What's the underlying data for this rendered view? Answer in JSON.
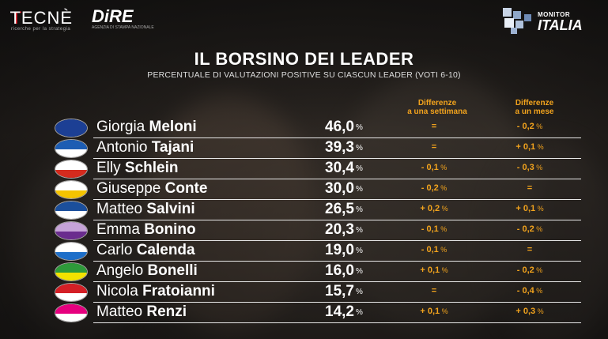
{
  "brands": {
    "tecne": "TECNÈ",
    "tecne_tagline": "ricerche per la strategia",
    "dire": "DiRE",
    "dire_tagline": "AGENZIA DI STAMPA NAZIONALE",
    "monitor_top": "MONITOR",
    "monitor_bottom": "ITALIA"
  },
  "colors": {
    "accent": "#f2a31d",
    "text": "#ffffff",
    "divider": "#e8e8e8"
  },
  "chart_data": {
    "type": "table",
    "title": "IL BORSINO DEI LEADER",
    "subtitle": "PERCENTUALE DI VALUTAZIONI POSITIVE SU CIASCUN LEADER (VOTI 6-10)",
    "columns": {
      "week_head_1": "Differenze",
      "week_head_2": "a una settimana",
      "month_head_1": "Differenze",
      "month_head_2": "a un mese"
    },
    "pct_unit": "%",
    "rows": [
      {
        "first": "Giorgia",
        "last": "Meloni",
        "value": "46,0",
        "week": "=",
        "month": "- 0,2",
        "party_colors": [
          "#1c3f94",
          "#1c3f94"
        ]
      },
      {
        "first": "Antonio",
        "last": "Tajani",
        "value": "39,3",
        "week": "=",
        "month": "+ 0,1",
        "party_colors": [
          "#1d5db3",
          "#ffffff"
        ]
      },
      {
        "first": "Elly",
        "last": "Schlein",
        "value": "30,4",
        "week": "- 0,1",
        "month": "- 0,3",
        "party_colors": [
          "#ffffff",
          "#d52b1e"
        ]
      },
      {
        "first": "Giuseppe",
        "last": "Conte",
        "value": "30,0",
        "week": "- 0,2",
        "month": "=",
        "party_colors": [
          "#ffffff",
          "#f5c400"
        ]
      },
      {
        "first": "Matteo",
        "last": "Salvini",
        "value": "26,5",
        "week": "+ 0,2",
        "month": "+ 0,1",
        "party_colors": [
          "#1b4f9c",
          "#ffffff"
        ]
      },
      {
        "first": "Emma",
        "last": "Bonino",
        "value": "20,3",
        "week": "- 0,1",
        "month": "- 0,2",
        "party_colors": [
          "#c6a3d8",
          "#6a2c8e"
        ]
      },
      {
        "first": "Carlo",
        "last": "Calenda",
        "value": "19,0",
        "week": "- 0,1",
        "month": "=",
        "party_colors": [
          "#ffffff",
          "#1e6fc9"
        ]
      },
      {
        "first": "Angelo",
        "last": "Bonelli",
        "value": "16,0",
        "week": "+ 0,1",
        "month": "- 0,2",
        "party_colors": [
          "#2e9a3a",
          "#f2e200"
        ]
      },
      {
        "first": "Nicola",
        "last": "Fratoianni",
        "value": "15,7",
        "week": "=",
        "month": "- 0,4",
        "party_colors": [
          "#d41f26",
          "#ffffff"
        ]
      },
      {
        "first": "Matteo",
        "last": "Renzi",
        "value": "14,2",
        "week": "+ 0,1",
        "month": "+ 0,3",
        "party_colors": [
          "#e6007e",
          "#ffffff"
        ]
      }
    ]
  }
}
